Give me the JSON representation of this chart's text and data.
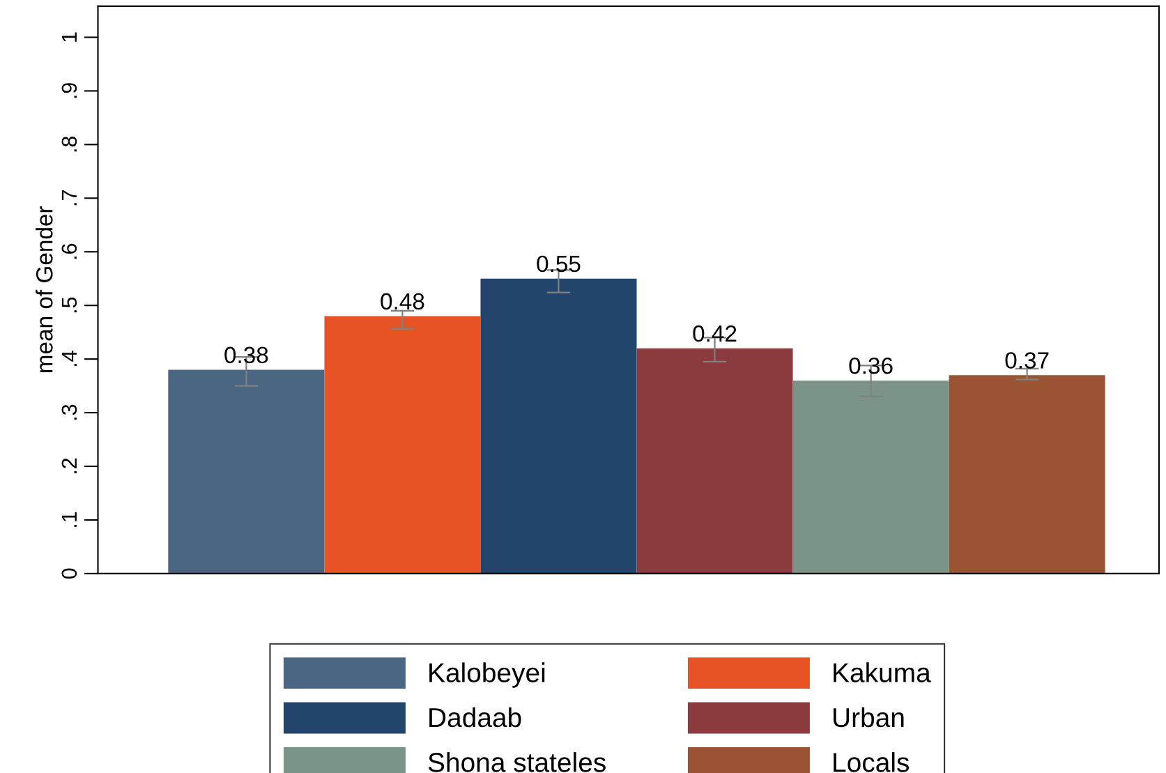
{
  "chart_data": {
    "type": "bar",
    "ylabel": "mean of Gender",
    "categories": [
      null
    ],
    "series": [
      {
        "name": "Kalobeyei",
        "color": "#4a6682",
        "values": [
          0.38
        ],
        "errors": [
          [
            0.35,
            0.404
          ]
        ]
      },
      {
        "name": "Kakuma",
        "color": "#e85325",
        "values": [
          0.48
        ],
        "errors": [
          [
            0.457,
            0.49
          ]
        ]
      },
      {
        "name": "Dadaab",
        "color": "#23446b",
        "values": [
          0.55
        ],
        "errors": [
          [
            0.524,
            0.566
          ]
        ]
      },
      {
        "name": "Urban",
        "color": "#8b3a3e",
        "values": [
          0.42
        ],
        "errors": [
          [
            0.395,
            0.44
          ]
        ]
      },
      {
        "name": "Shona stateles",
        "color": "#7a9488",
        "values": [
          0.36
        ],
        "errors": [
          [
            0.33,
            0.388
          ]
        ]
      },
      {
        "name": "Locals",
        "color": "#9a5434",
        "values": [
          0.37
        ],
        "errors": [
          [
            0.362,
            0.382
          ]
        ]
      }
    ],
    "ylim": [
      0,
      1.058
    ],
    "yticks": [
      0,
      {
        "value": 0.1,
        "label": ".1"
      },
      {
        "value": 0.2,
        "label": ".2"
      },
      {
        "value": 0.3,
        "label": ".3"
      },
      {
        "value": 0.4,
        "label": ".4"
      },
      {
        "value": 0.5,
        "label": ".5"
      },
      {
        "value": 0.6,
        "label": ".6"
      },
      {
        "value": 0.7,
        "label": ".7"
      },
      {
        "value": 0.8,
        "label": ".8"
      },
      {
        "value": 0.9,
        "label": ".9"
      },
      1
    ],
    "data_labels": true,
    "grid": false,
    "legend": "bottom"
  }
}
